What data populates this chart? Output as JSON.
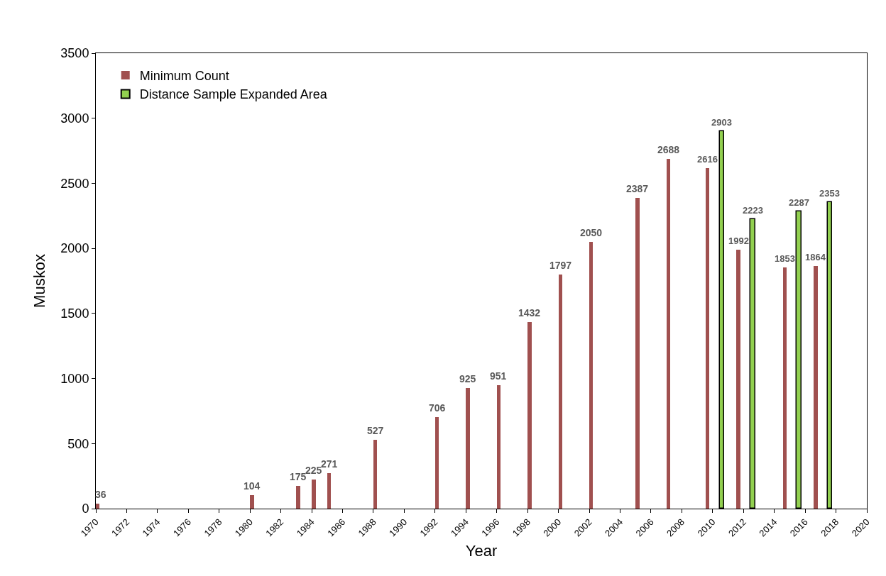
{
  "chart_data": {
    "type": "bar",
    "xlabel": "Year",
    "ylabel": "Muskox",
    "series": [
      {
        "name": "Minimum Count",
        "color": "#a0504f",
        "x": [
          1970,
          1980,
          1983,
          1984,
          1985,
          1988,
          1992,
          1994,
          1996,
          1998,
          2000,
          2002,
          2005,
          2007,
          2010,
          2012,
          2015,
          2017
        ],
        "values": [
          36,
          104,
          175,
          225,
          271,
          527,
          706,
          925,
          951,
          1432,
          1797,
          2050,
          2387,
          2688,
          2616,
          1992,
          1853,
          1864
        ]
      },
      {
        "name": "Distance Sample Expanded Area",
        "color": "#92d050",
        "x": [
          2010,
          2012,
          2015,
          2017
        ],
        "values": [
          2903,
          2223,
          2287,
          2353
        ]
      }
    ],
    "xlim": [
      1970,
      2020
    ],
    "xticks": [
      1970,
      1972,
      1974,
      1976,
      1978,
      1980,
      1982,
      1984,
      1986,
      1988,
      1990,
      1992,
      1994,
      1996,
      1998,
      2000,
      2002,
      2004,
      2006,
      2008,
      2010,
      2012,
      2014,
      2016,
      2018,
      2020
    ],
    "ylim": [
      0,
      3500
    ],
    "yticks": [
      0,
      500,
      1000,
      1500,
      2000,
      2500,
      3000,
      3500
    ],
    "data_labels": true,
    "legend": "top left"
  }
}
